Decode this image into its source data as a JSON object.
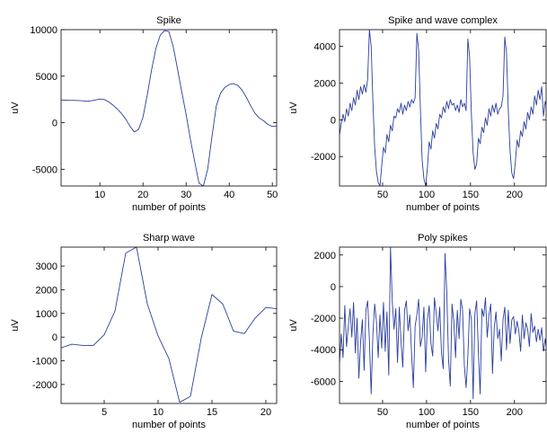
{
  "chart_data": [
    {
      "type": "line",
      "title": "Spike",
      "xlabel": "number of points",
      "ylabel": "uV",
      "xlim": [
        1,
        51
      ],
      "ylim": [
        -6800,
        10000
      ],
      "xticks": [
        10,
        20,
        30,
        40,
        50
      ],
      "yticks": [
        -5000,
        0,
        5000,
        10000
      ],
      "grid": false,
      "color": "#2b3f9e",
      "x": [
        1,
        2,
        3,
        4,
        5,
        6,
        7,
        8,
        9,
        10,
        11,
        12,
        13,
        14,
        15,
        16,
        17,
        18,
        19,
        20,
        21,
        22,
        23,
        24,
        25,
        26,
        27,
        28,
        29,
        30,
        31,
        32,
        33,
        34,
        35,
        36,
        37,
        38,
        39,
        40,
        41,
        42,
        43,
        44,
        45,
        46,
        47,
        48,
        49,
        50,
        51
      ],
      "y": [
        2450,
        2420,
        2400,
        2400,
        2380,
        2350,
        2300,
        2350,
        2450,
        2550,
        2500,
        2250,
        1900,
        1500,
        1000,
        400,
        -400,
        -1000,
        -700,
        600,
        3000,
        5700,
        8000,
        9400,
        9900,
        9800,
        8200,
        5800,
        3300,
        900,
        -1800,
        -4200,
        -6500,
        -6800,
        -5000,
        -1500,
        1800,
        3200,
        3800,
        4100,
        4200,
        4000,
        3500,
        2700,
        1800,
        1000,
        500,
        200,
        -200,
        -400,
        -350
      ]
    },
    {
      "type": "line",
      "title": "Spike and wave complex",
      "xlabel": "number of points",
      "ylabel": "uV",
      "xlim": [
        1,
        236
      ],
      "ylim": [
        -3600,
        4900
      ],
      "xticks": [
        50,
        100,
        150,
        200
      ],
      "yticks": [
        -2000,
        0,
        2000,
        4000
      ],
      "grid": false,
      "color": "#2b3f9e",
      "x": [
        1,
        3,
        5,
        7,
        9,
        11,
        13,
        15,
        17,
        19,
        21,
        23,
        25,
        27,
        29,
        31,
        33,
        35,
        37,
        39,
        41,
        43,
        45,
        47,
        49,
        51,
        53,
        55,
        57,
        59,
        61,
        63,
        65,
        67,
        69,
        71,
        73,
        75,
        77,
        79,
        81,
        83,
        85,
        87,
        89,
        91,
        93,
        95,
        97,
        99,
        101,
        103,
        105,
        107,
        109,
        111,
        113,
        115,
        117,
        119,
        121,
        123,
        125,
        127,
        129,
        131,
        133,
        135,
        137,
        139,
        141,
        143,
        145,
        147,
        149,
        151,
        153,
        155,
        157,
        159,
        161,
        163,
        165,
        167,
        169,
        171,
        173,
        175,
        177,
        179,
        181,
        183,
        185,
        187,
        189,
        191,
        193,
        195,
        197,
        199,
        201,
        203,
        205,
        207,
        209,
        211,
        213,
        215,
        217,
        219,
        221,
        223,
        225,
        227,
        229,
        231,
        233,
        235,
        236
      ],
      "y": [
        -800,
        -200,
        300,
        -100,
        600,
        200,
        900,
        500,
        1200,
        800,
        1600,
        1100,
        1800,
        1400,
        1900,
        1500,
        2200,
        4900,
        4000,
        1000,
        -1500,
        -2800,
        -3400,
        -3600,
        -2500,
        -1500,
        -1800,
        -800,
        -1200,
        -300,
        -600,
        200,
        100,
        600,
        400,
        900,
        300,
        800,
        500,
        1000,
        700,
        1100,
        900,
        1200,
        4700,
        3800,
        600,
        -2200,
        -3200,
        -3600,
        -2600,
        -1200,
        -1600,
        -600,
        -1000,
        -200,
        -500,
        300,
        100,
        700,
        400,
        1000,
        600,
        1100,
        800,
        900,
        500,
        800,
        400,
        1100,
        700,
        900,
        500,
        4400,
        3400,
        300,
        -1800,
        -2700,
        -2400,
        -1000,
        -1300,
        -400,
        -700,
        100,
        -300,
        600,
        200,
        800,
        400,
        900,
        300,
        600,
        700,
        1300,
        4500,
        3600,
        500,
        -1700,
        -2900,
        -3200,
        -2300,
        -1100,
        -1500,
        -600,
        -900,
        -100,
        -500,
        400,
        0,
        700,
        300,
        1300,
        800,
        1600,
        1100,
        1800,
        200,
        1000,
        800
      ]
    },
    {
      "type": "line",
      "title": "Sharp wave",
      "xlabel": "number of points",
      "ylabel": "uV",
      "xlim": [
        1,
        21
      ],
      "ylim": [
        -2800,
        3800
      ],
      "xticks": [
        5,
        10,
        15,
        20
      ],
      "yticks": [
        -2000,
        -1000,
        0,
        1000,
        2000,
        3000
      ],
      "grid": false,
      "color": "#2b3f9e",
      "x": [
        1,
        2,
        3,
        4,
        5,
        6,
        7,
        8,
        9,
        10,
        11,
        12,
        13,
        14,
        15,
        16,
        17,
        18,
        19,
        20,
        21
      ],
      "y": [
        -450,
        -300,
        -350,
        -350,
        100,
        1100,
        3550,
        3800,
        1400,
        50,
        -900,
        -2750,
        -2500,
        -50,
        1800,
        1400,
        250,
        150,
        800,
        1250,
        1200
      ]
    },
    {
      "type": "line",
      "title": "Poly spikes",
      "xlabel": "number of points",
      "ylabel": "uV",
      "xlim": [
        1,
        236
      ],
      "ylim": [
        -7400,
        2500
      ],
      "xticks": [
        50,
        100,
        150,
        200
      ],
      "yticks": [
        -6000,
        -4000,
        -2000,
        0,
        2000
      ],
      "grid": false,
      "color": "#2b3f9e",
      "x": [
        1,
        3,
        5,
        7,
        9,
        11,
        13,
        15,
        17,
        19,
        21,
        23,
        25,
        27,
        29,
        31,
        33,
        35,
        37,
        39,
        41,
        43,
        45,
        47,
        49,
        51,
        53,
        55,
        57,
        59,
        61,
        63,
        65,
        67,
        69,
        71,
        73,
        75,
        77,
        79,
        81,
        83,
        85,
        87,
        89,
        91,
        93,
        95,
        97,
        99,
        101,
        103,
        105,
        107,
        109,
        111,
        113,
        115,
        117,
        119,
        121,
        123,
        125,
        127,
        129,
        131,
        133,
        135,
        137,
        139,
        141,
        143,
        145,
        147,
        149,
        151,
        153,
        155,
        157,
        159,
        161,
        163,
        165,
        167,
        169,
        171,
        173,
        175,
        177,
        179,
        181,
        183,
        185,
        187,
        189,
        191,
        193,
        195,
        197,
        199,
        201,
        203,
        205,
        207,
        209,
        211,
        213,
        215,
        217,
        219,
        221,
        223,
        225,
        227,
        229,
        231,
        233,
        235,
        236
      ],
      "y": [
        -4800,
        -3000,
        -4500,
        -1200,
        -3800,
        -2500,
        -1400,
        -3200,
        -1000,
        -4200,
        -2000,
        -5800,
        -3500,
        -2100,
        -5300,
        -1500,
        -900,
        -3400,
        -6800,
        -3000,
        -1100,
        -2200,
        -4500,
        -1800,
        -3900,
        -1000,
        -4100,
        -1600,
        -5600,
        2500,
        -900,
        -2700,
        -1400,
        -4800,
        -1300,
        -3500,
        -5100,
        -1500,
        -900,
        -2800,
        -1800,
        -4300,
        -6400,
        -2500,
        -1800,
        -800,
        -3800,
        -3200,
        -1300,
        -5400,
        -2100,
        -1200,
        -3600,
        -4400,
        -700,
        -1700,
        -2800,
        -1300,
        -4200,
        -5200,
        2100,
        -300,
        -4600,
        -6300,
        -1100,
        -2200,
        -4500,
        -1500,
        -3300,
        -800,
        -1500,
        -5000,
        -6400,
        -4400,
        -1400,
        -2100,
        -7100,
        -1700,
        -900,
        -4200,
        -6800,
        -1400,
        -1900,
        -700,
        -3200,
        -1800,
        -1100,
        -5500,
        -2600,
        -1600,
        -3300,
        -2700,
        -4700,
        -2100,
        -1300,
        -4000,
        -1500,
        -3600,
        -2100,
        -1900,
        -3000,
        -2200,
        -2800,
        -4100,
        -1800,
        -3300,
        -2300,
        -2700,
        -3800,
        -1700,
        -2900,
        -2500,
        -3500,
        -2700,
        -3400,
        -2600,
        -4100,
        -3300,
        -3800
      ]
    }
  ]
}
